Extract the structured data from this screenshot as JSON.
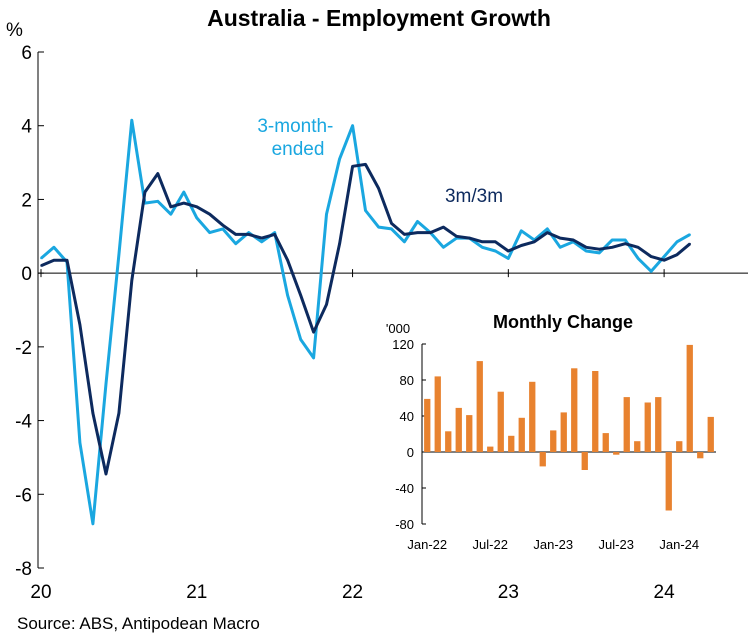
{
  "chart_data": [
    {
      "type": "line",
      "title": "Australia - Employment Growth",
      "ylabel": "%",
      "ylim": [
        -8,
        6
      ],
      "yticks": [
        "6",
        "4",
        "2",
        "0",
        "-2",
        "-4",
        "-6",
        "-8"
      ],
      "xticks": [
        "20",
        "21",
        "22",
        "23",
        "24"
      ],
      "source": "Source: ABS, Antipodean Macro",
      "colors": {
        "3-month-ended": "#1aa7e0",
        "3m/3m": "#0d2a5e"
      },
      "series": [
        {
          "name": "3-month-ended",
          "label_lines": [
            "3-month-",
            "ended"
          ],
          "x": [
            2020.0,
            2020.083,
            2020.167,
            2020.25,
            2020.333,
            2020.417,
            2020.5,
            2020.583,
            2020.667,
            2020.75,
            2020.833,
            2020.917,
            2021.0,
            2021.083,
            2021.167,
            2021.25,
            2021.333,
            2021.417,
            2021.5,
            2021.583,
            2021.667,
            2021.75,
            2021.833,
            2021.917,
            2022.0,
            2022.083,
            2022.167,
            2022.25,
            2022.333,
            2022.417,
            2022.5,
            2022.583,
            2022.667,
            2022.75,
            2022.833,
            2022.917,
            2023.0,
            2023.083,
            2023.167,
            2023.25,
            2023.333,
            2023.417,
            2023.5,
            2023.583,
            2023.667,
            2023.75,
            2023.833,
            2023.917,
            2024.0,
            2024.083,
            2024.167,
            2024.25
          ],
          "values": [
            0.4,
            0.7,
            0.3,
            -4.6,
            -6.8,
            -3.0,
            0.5,
            4.15,
            1.9,
            1.95,
            1.6,
            2.2,
            1.5,
            1.1,
            1.2,
            0.8,
            1.1,
            0.85,
            1.1,
            -0.6,
            -1.8,
            -2.3,
            1.6,
            3.1,
            4.0,
            1.7,
            1.25,
            1.2,
            0.85,
            1.4,
            1.1,
            0.7,
            0.95,
            0.95,
            0.7,
            0.6,
            0.4,
            1.15,
            0.9,
            1.2,
            0.7,
            0.85,
            0.6,
            0.55,
            0.9,
            0.9,
            0.4,
            0.05,
            0.45,
            0.85,
            1.05,
            null
          ]
        },
        {
          "name": "3m/3m",
          "label_lines": [
            "3m/3m"
          ],
          "x": [
            2020.0,
            2020.083,
            2020.167,
            2020.25,
            2020.333,
            2020.417,
            2020.5,
            2020.583,
            2020.667,
            2020.75,
            2020.833,
            2020.917,
            2021.0,
            2021.083,
            2021.167,
            2021.25,
            2021.333,
            2021.417,
            2021.5,
            2021.583,
            2021.667,
            2021.75,
            2021.833,
            2021.917,
            2022.0,
            2022.083,
            2022.167,
            2022.25,
            2022.333,
            2022.417,
            2022.5,
            2022.583,
            2022.667,
            2022.75,
            2022.833,
            2022.917,
            2023.0,
            2023.083,
            2023.167,
            2023.25,
            2023.333,
            2023.417,
            2023.5,
            2023.583,
            2023.667,
            2023.75,
            2023.833,
            2023.917,
            2024.0,
            2024.083,
            2024.167,
            2024.25
          ],
          "values": [
            0.2,
            0.35,
            0.35,
            -1.4,
            -3.8,
            -5.45,
            -3.8,
            -0.2,
            2.2,
            2.7,
            1.8,
            1.9,
            1.8,
            1.6,
            1.3,
            1.05,
            1.05,
            0.95,
            1.05,
            0.35,
            -0.6,
            -1.6,
            -0.85,
            0.8,
            2.9,
            2.95,
            2.3,
            1.35,
            1.05,
            1.1,
            1.1,
            1.25,
            1.0,
            0.95,
            0.85,
            0.85,
            0.6,
            0.75,
            0.85,
            1.1,
            0.95,
            0.9,
            0.7,
            0.65,
            0.7,
            0.8,
            0.7,
            0.45,
            0.35,
            0.5,
            0.8,
            null
          ]
        }
      ]
    },
    {
      "type": "bar",
      "title": "Monthly Change",
      "ylabel": "'000",
      "ylim": [
        -80,
        120
      ],
      "yticks": [
        "120",
        "80",
        "40",
        "0",
        "-40",
        "-80"
      ],
      "xticks": [
        "Jan-22",
        "Jul-22",
        "Jan-23",
        "Jul-23",
        "Jan-24"
      ],
      "color": "#e8822f",
      "categories": [
        "Jan-22",
        "Feb-22",
        "Mar-22",
        "Apr-22",
        "May-22",
        "Jun-22",
        "Jul-22",
        "Aug-22",
        "Sep-22",
        "Oct-22",
        "Nov-22",
        "Dec-22",
        "Jan-23",
        "Feb-23",
        "Mar-23",
        "Apr-23",
        "May-23",
        "Jun-23",
        "Jul-23",
        "Aug-23",
        "Sep-23",
        "Oct-23",
        "Nov-23",
        "Dec-23",
        "Jan-24",
        "Feb-24",
        "Mar-24",
        "Apr-24"
      ],
      "values": [
        59,
        84,
        23,
        49,
        41,
        101,
        6,
        67,
        18,
        38,
        78,
        -16,
        24,
        44,
        93,
        -20,
        90,
        21,
        -3,
        61,
        12,
        55,
        61,
        -65,
        12,
        119,
        -7,
        39
      ]
    }
  ]
}
